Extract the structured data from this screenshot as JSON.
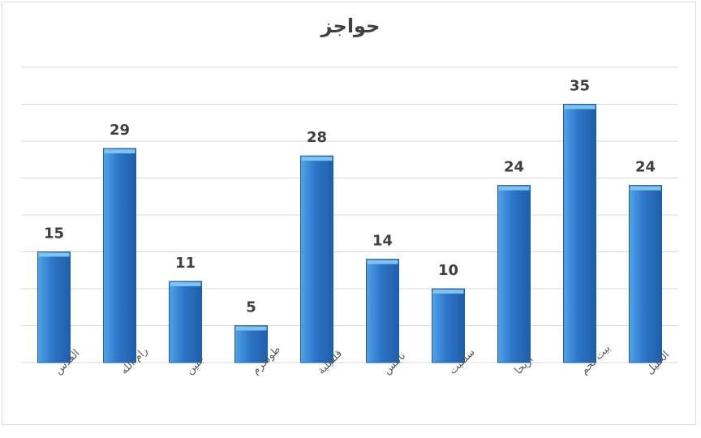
{
  "chart_data": {
    "type": "bar",
    "title": "حواجز",
    "xlabel": "",
    "ylabel": "",
    "categories": [
      "القدس",
      "رام الله",
      "جنين",
      "طولكرم",
      "قلقيلية",
      "نابلس",
      "سلفيت",
      "أريحا",
      "بيت لحم",
      "الخليل"
    ],
    "values": [
      15,
      29,
      11,
      5,
      28,
      14,
      10,
      24,
      35,
      24
    ],
    "ylim": [
      0,
      40
    ],
    "grid": true,
    "legend": "none",
    "data_labels": true,
    "colors": {
      "bar_top": "#4fa3ea",
      "bar_main": "#2e75c8",
      "bar_edge": "#1f5fa8",
      "bar_cap": "#7cc4f5",
      "gridline": "#d9d9d9",
      "text": "#404040"
    }
  }
}
